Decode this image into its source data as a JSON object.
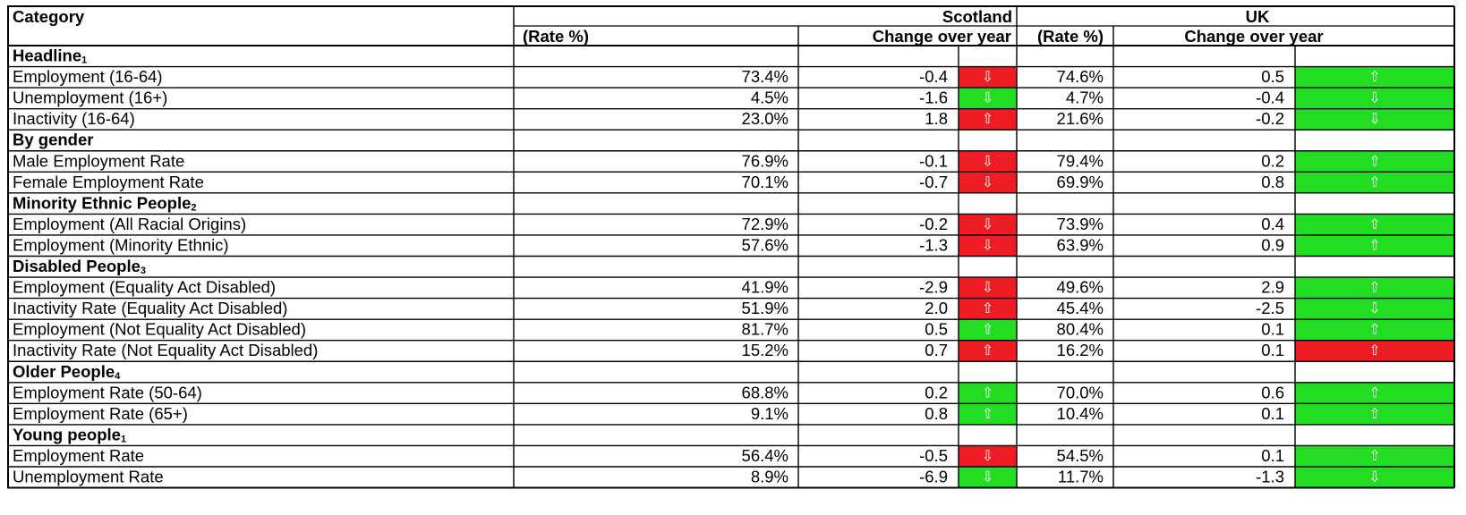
{
  "header": {
    "category": "Category",
    "scotland": "Scotland",
    "uk": "UK",
    "rate": "(Rate %)",
    "change": "Change over year"
  },
  "colors": {
    "red": "#ee1c23",
    "green": "#22dd22",
    "border": "#000000"
  },
  "icons": {
    "up": "arrow-up-icon",
    "down": "arrow-down-icon",
    "up_glyph": "⇧",
    "down_glyph": "⇩"
  },
  "rows": [
    {
      "type": "section",
      "title": "Headline",
      "note": "1"
    },
    {
      "type": "data",
      "label": "Employment (16-64)",
      "scot_rate": "73.4%",
      "scot_change": "-0.4",
      "scot_dir": "down",
      "scot_color": "red",
      "uk_rate": "74.6%",
      "uk_change": "0.5",
      "uk_dir": "up",
      "uk_color": "green"
    },
    {
      "type": "data",
      "label": "Unemployment (16+)",
      "scot_rate": "4.5%",
      "scot_change": "-1.6",
      "scot_dir": "down",
      "scot_color": "green",
      "uk_rate": "4.7%",
      "uk_change": "-0.4",
      "uk_dir": "down",
      "uk_color": "green"
    },
    {
      "type": "data",
      "label": "Inactivity (16-64)",
      "scot_rate": "23.0%",
      "scot_change": "1.8",
      "scot_dir": "up",
      "scot_color": "red",
      "uk_rate": "21.6%",
      "uk_change": "-0.2",
      "uk_dir": "down",
      "uk_color": "green"
    },
    {
      "type": "section",
      "title": "By gender",
      "note": ""
    },
    {
      "type": "data",
      "label": "Male Employment Rate",
      "scot_rate": "76.9%",
      "scot_change": "-0.1",
      "scot_dir": "down",
      "scot_color": "red",
      "uk_rate": "79.4%",
      "uk_change": "0.2",
      "uk_dir": "up",
      "uk_color": "green"
    },
    {
      "type": "data",
      "label": "Female Employment Rate",
      "scot_rate": "70.1%",
      "scot_change": "-0.7",
      "scot_dir": "down",
      "scot_color": "red",
      "uk_rate": "69.9%",
      "uk_change": "0.8",
      "uk_dir": "up",
      "uk_color": "green"
    },
    {
      "type": "section",
      "title": "Minority Ethnic People",
      "note": "2"
    },
    {
      "type": "data",
      "label": "Employment (All Racial Origins)",
      "scot_rate": "72.9%",
      "scot_change": "-0.2",
      "scot_dir": "down",
      "scot_color": "red",
      "uk_rate": "73.9%",
      "uk_change": "0.4",
      "uk_dir": "up",
      "uk_color": "green"
    },
    {
      "type": "data",
      "label": "Employment (Minority Ethnic)",
      "scot_rate": "57.6%",
      "scot_change": "-1.3",
      "scot_dir": "down",
      "scot_color": "red",
      "uk_rate": "63.9%",
      "uk_change": "0.9",
      "uk_dir": "up",
      "uk_color": "green"
    },
    {
      "type": "section",
      "title": "Disabled People",
      "note": "3"
    },
    {
      "type": "data",
      "label": "Employment (Equality Act Disabled)",
      "scot_rate": "41.9%",
      "scot_change": "-2.9",
      "scot_dir": "down",
      "scot_color": "red",
      "uk_rate": "49.6%",
      "uk_change": "2.9",
      "uk_dir": "up",
      "uk_color": "green"
    },
    {
      "type": "data",
      "label": "Inactivity Rate (Equality Act Disabled)",
      "scot_rate": "51.9%",
      "scot_change": "2.0",
      "scot_dir": "up",
      "scot_color": "red",
      "uk_rate": "45.4%",
      "uk_change": "-2.5",
      "uk_dir": "down",
      "uk_color": "green"
    },
    {
      "type": "data",
      "label": "Employment (Not Equality Act Disabled)",
      "scot_rate": "81.7%",
      "scot_change": "0.5",
      "scot_dir": "up",
      "scot_color": "green",
      "uk_rate": "80.4%",
      "uk_change": "0.1",
      "uk_dir": "up",
      "uk_color": "green"
    },
    {
      "type": "data",
      "label": "Inactivity Rate (Not Equality Act Disabled)",
      "scot_rate": "15.2%",
      "scot_change": "0.7",
      "scot_dir": "up",
      "scot_color": "red",
      "uk_rate": "16.2%",
      "uk_change": "0.1",
      "uk_dir": "up",
      "uk_color": "red"
    },
    {
      "type": "section",
      "title": "Older People",
      "note": "4"
    },
    {
      "type": "data",
      "label": "Employment Rate (50-64)",
      "scot_rate": "68.8%",
      "scot_change": "0.2",
      "scot_dir": "up",
      "scot_color": "green",
      "uk_rate": "70.0%",
      "uk_change": "0.6",
      "uk_dir": "up",
      "uk_color": "green"
    },
    {
      "type": "data",
      "label": "Employment Rate (65+)",
      "scot_rate": "9.1%",
      "scot_change": "0.8",
      "scot_dir": "up",
      "scot_color": "green",
      "uk_rate": "10.4%",
      "uk_change": "0.1",
      "uk_dir": "up",
      "uk_color": "green"
    },
    {
      "type": "section",
      "title": "Young people",
      "note": "1"
    },
    {
      "type": "data",
      "label": "Employment Rate",
      "scot_rate": "56.4%",
      "scot_change": "-0.5",
      "scot_dir": "down",
      "scot_color": "red",
      "uk_rate": "54.5%",
      "uk_change": "0.1",
      "uk_dir": "up",
      "uk_color": "green"
    },
    {
      "type": "data",
      "label": "Unemployment Rate",
      "scot_rate": "8.9%",
      "scot_change": "-6.9",
      "scot_dir": "down",
      "scot_color": "green",
      "uk_rate": "11.7%",
      "uk_change": "-1.3",
      "uk_dir": "down",
      "uk_color": "green"
    }
  ]
}
